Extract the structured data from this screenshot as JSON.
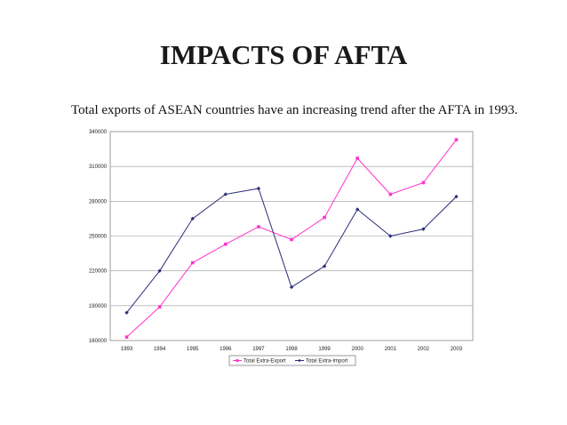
{
  "slide": {
    "title": "IMPACTS OF AFTA",
    "subtitle": "Total exports of ASEAN countries have an increasing trend after the AFTA in 1993."
  },
  "chart_data": {
    "type": "line",
    "x": [
      "1993",
      "1994",
      "1995",
      "1996",
      "1997",
      "1998",
      "1999",
      "2000",
      "2001",
      "2002",
      "2003"
    ],
    "series": [
      {
        "name": "Total Extra-Export",
        "color": "#ff33cc",
        "marker": "square",
        "values": [
          163000,
          189000,
          227000,
          243000,
          258000,
          247000,
          266000,
          317000,
          286000,
          296000,
          333000
        ]
      },
      {
        "name": "Total Extra-Import",
        "color": "#2e2e7a",
        "marker": "diamond",
        "values": [
          184000,
          220000,
          265000,
          286000,
          291000,
          206000,
          224000,
          273000,
          250000,
          256000,
          284000
        ]
      }
    ],
    "yticks": [
      "340000",
      "310000",
      "280000",
      "250000",
      "220000",
      "190000",
      "160000"
    ],
    "ylim": [
      160000,
      340000
    ],
    "grid": true,
    "legend_position": "bottom"
  }
}
